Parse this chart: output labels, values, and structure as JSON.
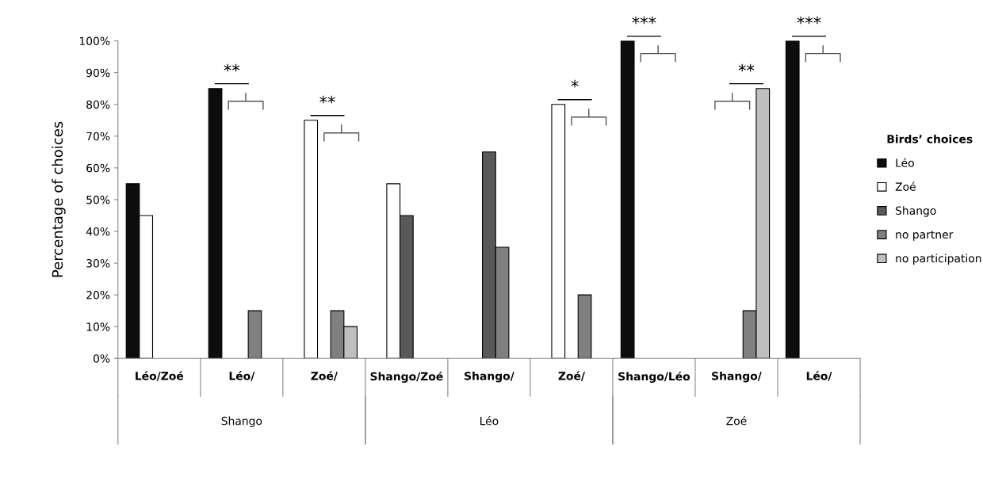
{
  "chart_data": {
    "type": "bar",
    "categories": [
      "Léo/Zoé",
      "Léo/",
      "Zoé/",
      "Shango/Zoé",
      "Shango/",
      "Zoé/",
      "Shango/Léo",
      "Shango/",
      "Léo/"
    ],
    "series": [
      {
        "name": "Léo",
        "color": "#0d0d0d",
        "values": [
          55,
          85,
          null,
          null,
          null,
          null,
          100,
          null,
          100
        ]
      },
      {
        "name": "Zoé",
        "color": "#ffffff",
        "values": [
          45,
          null,
          75,
          55,
          null,
          80,
          null,
          null,
          null
        ]
      },
      {
        "name": "Shango",
        "color": "#595959",
        "values": [
          null,
          null,
          null,
          45,
          65,
          null,
          null,
          null,
          null
        ]
      },
      {
        "name": "no partner",
        "color": "#808080",
        "values": [
          null,
          15,
          15,
          null,
          35,
          20,
          null,
          15,
          null
        ]
      },
      {
        "name": "no participation",
        "color": "#bfbfbf",
        "values": [
          null,
          null,
          10,
          null,
          null,
          null,
          null,
          85,
          null
        ]
      }
    ],
    "ylabel": "Percentage of choices",
    "legend_title": "Birds’ choices",
    "ylim": [
      0,
      100
    ],
    "yticks": [
      {
        "value": 0,
        "label": "0%"
      },
      {
        "value": 10,
        "label": "10%"
      },
      {
        "value": 20,
        "label": "20%"
      },
      {
        "value": 30,
        "label": "30%"
      },
      {
        "value": 40,
        "label": "40%"
      },
      {
        "value": 50,
        "label": "50%"
      },
      {
        "value": 60,
        "label": "60%"
      },
      {
        "value": 70,
        "label": "70%"
      },
      {
        "value": 80,
        "label": "80%"
      },
      {
        "value": 90,
        "label": "90%"
      },
      {
        "value": 100,
        "label": "100%"
      }
    ],
    "annotations": [
      "**",
      "**",
      "*",
      "***",
      "**",
      "***",
      "Shango",
      "Léo",
      "Zoé"
    ],
    "grid": false,
    "legend": "right"
  }
}
